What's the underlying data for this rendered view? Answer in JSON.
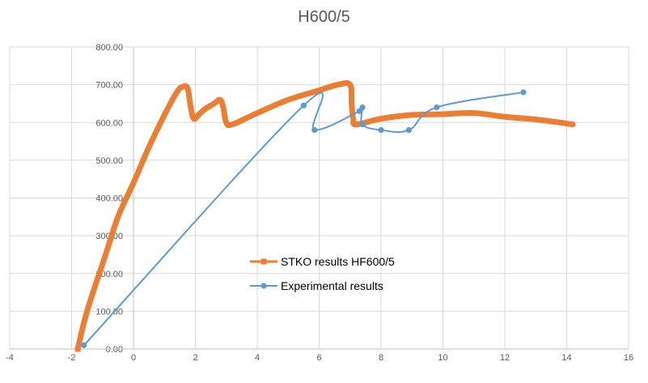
{
  "chart_data": {
    "type": "scatter",
    "title": "H600/5",
    "xlabel": "",
    "ylabel": "",
    "xlim": [
      -4,
      16
    ],
    "ylim": [
      0,
      800
    ],
    "x_ticks": [
      "-4",
      "-2",
      "0",
      "2",
      "4",
      "6",
      "8",
      "10",
      "12",
      "14",
      "16"
    ],
    "y_ticks": [
      "0.00",
      "100.00",
      "200.00",
      "300.00",
      "400.00",
      "500.00",
      "600.00",
      "700.00",
      "800.00"
    ],
    "grid": true,
    "legend_position": "center",
    "series": [
      {
        "name": "STKO results HF600/5",
        "color": "#ED7D31",
        "marker": "square",
        "dense": true,
        "points": [
          [
            -1.8,
            0
          ],
          [
            -1.5,
            100
          ],
          [
            -0.9,
            250
          ],
          [
            -0.5,
            350
          ],
          [
            0.0,
            440
          ],
          [
            0.5,
            535
          ],
          [
            1.0,
            620
          ],
          [
            1.4,
            680
          ],
          [
            1.6,
            695
          ],
          [
            1.75,
            690
          ],
          [
            1.85,
            640
          ],
          [
            1.95,
            610
          ],
          [
            2.1,
            620
          ],
          [
            2.3,
            635
          ],
          [
            2.6,
            650
          ],
          [
            2.8,
            660
          ],
          [
            2.9,
            640
          ],
          [
            3.0,
            600
          ],
          [
            3.2,
            595
          ],
          [
            4.0,
            625
          ],
          [
            5.0,
            660
          ],
          [
            6.0,
            685
          ],
          [
            6.6,
            700
          ],
          [
            7.0,
            700
          ],
          [
            7.05,
            650
          ],
          [
            7.1,
            610
          ],
          [
            7.2,
            595
          ],
          [
            8.0,
            610
          ],
          [
            9.0,
            620
          ],
          [
            10.0,
            622
          ],
          [
            11.0,
            625
          ],
          [
            12.0,
            615
          ],
          [
            13.0,
            608
          ],
          [
            14.2,
            595
          ]
        ]
      },
      {
        "name": "Experimental results",
        "color": "#5B9BD5",
        "marker": "circle",
        "dense": false,
        "points": [
          [
            -1.6,
            10
          ],
          [
            5.5,
            645
          ],
          [
            5.85,
            580
          ],
          [
            7.3,
            630
          ],
          [
            7.4,
            640
          ],
          [
            7.4,
            595
          ],
          [
            8.0,
            580
          ],
          [
            8.9,
            580
          ],
          [
            9.8,
            640
          ],
          [
            12.6,
            680
          ]
        ]
      }
    ]
  }
}
